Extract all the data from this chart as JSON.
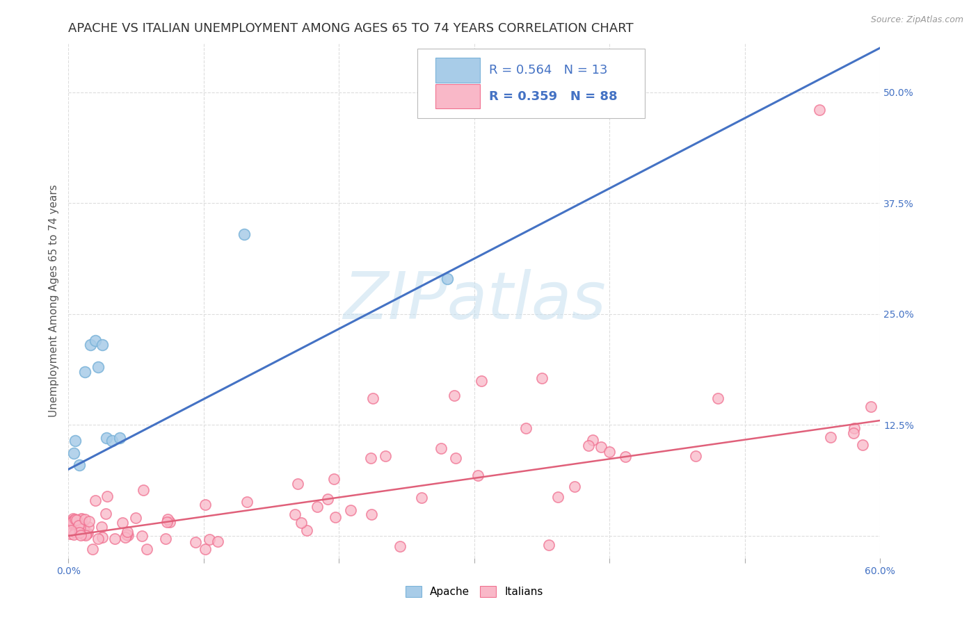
{
  "title": "APACHE VS ITALIAN UNEMPLOYMENT AMONG AGES 65 TO 74 YEARS CORRELATION CHART",
  "source": "Source: ZipAtlas.com",
  "ylabel": "Unemployment Among Ages 65 to 74 years",
  "xlim": [
    0.0,
    0.6
  ],
  "ylim": [
    -0.025,
    0.555
  ],
  "xticks": [
    0.0,
    0.1,
    0.2,
    0.3,
    0.4,
    0.5,
    0.6
  ],
  "xticklabels": [
    "0.0%",
    "",
    "",
    "",
    "",
    "",
    "60.0%"
  ],
  "yticks": [
    0.0,
    0.125,
    0.25,
    0.375,
    0.5
  ],
  "right_yticklabels": [
    "",
    "12.5%",
    "25.0%",
    "37.5%",
    "50.0%"
  ],
  "apache_R": "0.564",
  "apache_N": "13",
  "italian_R": "0.359",
  "italian_N": "88",
  "apache_color": "#a8cce8",
  "apache_edge_color": "#7ab3d9",
  "italian_color": "#f9b8c8",
  "italian_edge_color": "#f07090",
  "apache_line_color": "#4472c4",
  "italian_line_color": "#e0607a",
  "apache_x": [
    0.004,
    0.005,
    0.008,
    0.012,
    0.016,
    0.02,
    0.022,
    0.025,
    0.028,
    0.032,
    0.038,
    0.13,
    0.28
  ],
  "apache_y": [
    0.093,
    0.107,
    0.08,
    0.185,
    0.215,
    0.22,
    0.19,
    0.215,
    0.11,
    0.107,
    0.11,
    0.34,
    0.29
  ],
  "apache_line_x0": 0.0,
  "apache_line_y0": 0.075,
  "apache_line_x1": 0.6,
  "apache_line_y1": 0.55,
  "italian_line_x0": 0.0,
  "italian_line_y0": 0.0,
  "italian_line_x1": 0.6,
  "italian_line_y1": 0.13,
  "watermark_text": "ZIPatlas",
  "watermark_color": "#c5dff0",
  "background_color": "#ffffff",
  "grid_color": "#dddddd",
  "tick_color": "#4472c4",
  "title_fontsize": 13,
  "axis_label_fontsize": 11,
  "tick_fontsize": 10,
  "legend_fontsize": 13
}
